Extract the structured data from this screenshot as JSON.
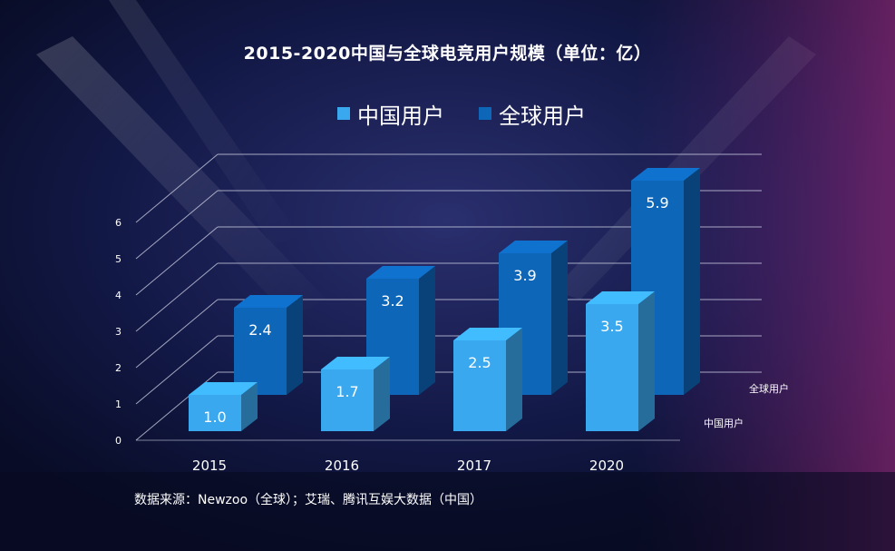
{
  "chart_data": {
    "type": "bar",
    "title": "2015-2020中国与全球电竞用户规模（单位：亿）",
    "categories": [
      "2015",
      "2016",
      "2017",
      "2020"
    ],
    "series": [
      {
        "name": "中国用户",
        "values": [
          1.0,
          1.7,
          2.5,
          3.5
        ],
        "color": "#3aa8ee"
      },
      {
        "name": "全球用户",
        "values": [
          2.4,
          3.2,
          3.9,
          5.9
        ],
        "color": "#0d66b8"
      }
    ],
    "y_ticks": [
      "0",
      "1",
      "2",
      "3",
      "4",
      "5",
      "6"
    ],
    "ylim": [
      0,
      6
    ],
    "grid": true,
    "legend_position": "top-center",
    "depth_axis_labels": [
      "全球用户",
      "中国用户"
    ],
    "source": "数据来源：Newzoo（全球）；艾瑞、腾讯互娱大数据（中国）"
  }
}
